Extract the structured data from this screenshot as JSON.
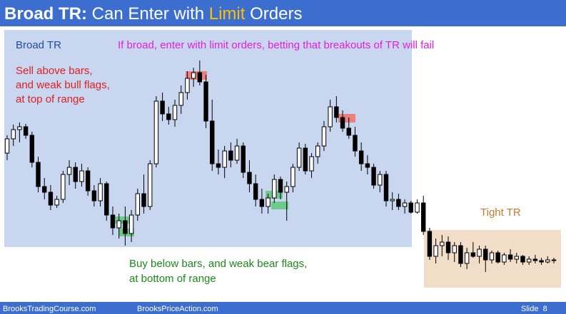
{
  "header": {
    "title_bold": "Broad TR:",
    "title_rest": "Can Enter with",
    "title_highlight": "Limit",
    "title_end": "Orders"
  },
  "annotations": {
    "broad_tr": "Broad TR",
    "instruction": "If broad, enter with limit orders, betting that breakouts of TR will fail",
    "sell": [
      "Sell above bars,",
      "and weak bull flags,",
      "at top of range"
    ],
    "buy": [
      "Buy below bars, and weak bear flags,",
      "at bottom of range"
    ],
    "tight_tr": "Tight TR"
  },
  "footer": {
    "left": "BrooksTradingCourse.com",
    "middle": "BrooksPriceAction.com",
    "slide": "Slide  8"
  },
  "chart_data": {
    "type": "candlestick",
    "ylim": [
      60,
      360
    ],
    "ohlc": [
      [
        225,
        250,
        215,
        245
      ],
      [
        245,
        265,
        235,
        258
      ],
      [
        258,
        268,
        240,
        262
      ],
      [
        262,
        266,
        245,
        250
      ],
      [
        250,
        255,
        205,
        212
      ],
      [
        212,
        220,
        170,
        178
      ],
      [
        178,
        190,
        160,
        170
      ],
      [
        170,
        180,
        145,
        152
      ],
      [
        152,
        165,
        148,
        160
      ],
      [
        160,
        200,
        155,
        195
      ],
      [
        195,
        215,
        180,
        205
      ],
      [
        205,
        212,
        175,
        185
      ],
      [
        185,
        210,
        178,
        200
      ],
      [
        200,
        205,
        165,
        172
      ],
      [
        172,
        180,
        150,
        158
      ],
      [
        158,
        190,
        150,
        182
      ],
      [
        182,
        185,
        130,
        138
      ],
      [
        138,
        150,
        110,
        120
      ],
      [
        120,
        140,
        105,
        130
      ],
      [
        130,
        150,
        95,
        112
      ],
      [
        112,
        145,
        100,
        138
      ],
      [
        138,
        175,
        130,
        168
      ],
      [
        168,
        195,
        140,
        150
      ],
      [
        150,
        215,
        145,
        210
      ],
      [
        210,
        305,
        205,
        298
      ],
      [
        298,
        310,
        270,
        280
      ],
      [
        280,
        290,
        265,
        272
      ],
      [
        272,
        300,
        262,
        292
      ],
      [
        292,
        320,
        280,
        310
      ],
      [
        310,
        340,
        300,
        330
      ],
      [
        330,
        345,
        318,
        338
      ],
      [
        338,
        355,
        320,
        325
      ],
      [
        325,
        335,
        260,
        270
      ],
      [
        270,
        300,
        200,
        210
      ],
      [
        210,
        230,
        195,
        205
      ],
      [
        205,
        235,
        190,
        228
      ],
      [
        228,
        240,
        205,
        215
      ],
      [
        215,
        245,
        210,
        235
      ],
      [
        235,
        240,
        190,
        198
      ],
      [
        198,
        215,
        170,
        182
      ],
      [
        182,
        195,
        150,
        160
      ],
      [
        160,
        175,
        140,
        150
      ],
      [
        150,
        168,
        140,
        162
      ],
      [
        162,
        195,
        155,
        188
      ],
      [
        188,
        192,
        160,
        170
      ],
      [
        170,
        185,
        130,
        178
      ],
      [
        178,
        210,
        170,
        205
      ],
      [
        205,
        240,
        200,
        232
      ],
      [
        232,
        238,
        195,
        200
      ],
      [
        200,
        225,
        190,
        220
      ],
      [
        220,
        240,
        210,
        235
      ],
      [
        235,
        270,
        228,
        262
      ],
      [
        262,
        300,
        255,
        290
      ],
      [
        290,
        305,
        268,
        275
      ],
      [
        275,
        285,
        255,
        260
      ],
      [
        260,
        275,
        245,
        250
      ],
      [
        250,
        262,
        220,
        228
      ],
      [
        228,
        240,
        200,
        210
      ],
      [
        210,
        222,
        195,
        205
      ],
      [
        205,
        210,
        175,
        180
      ],
      [
        180,
        200,
        170,
        195
      ],
      [
        195,
        200,
        150,
        158
      ],
      [
        158,
        170,
        145,
        160
      ],
      [
        160,
        168,
        145,
        150
      ],
      [
        150,
        160,
        140,
        155
      ],
      [
        155,
        158,
        140,
        142
      ],
      [
        142,
        160,
        140,
        155
      ],
      [
        155,
        165,
        110,
        115
      ],
      [
        115,
        120,
        75,
        80
      ],
      [
        80,
        105,
        70,
        95
      ],
      [
        95,
        110,
        80,
        100
      ],
      [
        100,
        108,
        75,
        85
      ],
      [
        85,
        100,
        72,
        95
      ],
      [
        95,
        100,
        65,
        70
      ],
      [
        70,
        92,
        62,
        85
      ],
      [
        85,
        100,
        78,
        80
      ],
      [
        80,
        95,
        70,
        90
      ],
      [
        90,
        95,
        58,
        75
      ],
      [
        75,
        88,
        70,
        85
      ],
      [
        85,
        88,
        70,
        72
      ],
      [
        72,
        85,
        68,
        82
      ],
      [
        82,
        90,
        72,
        76
      ],
      [
        76,
        85,
        70,
        80
      ],
      [
        80,
        82,
        68,
        72
      ],
      [
        72,
        80,
        68,
        76
      ],
      [
        76,
        82,
        70,
        74
      ],
      [
        74,
        78,
        68,
        72
      ],
      [
        72,
        80,
        70,
        75
      ],
      [
        75,
        78,
        70,
        74
      ]
    ]
  }
}
